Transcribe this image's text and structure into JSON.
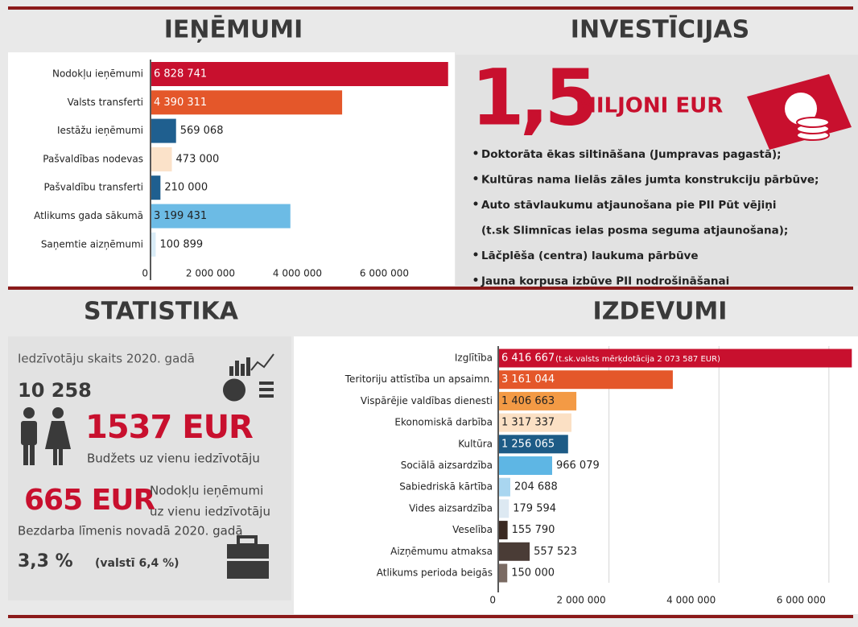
{
  "headings": [
    "IEŅĒMUMI",
    "INVESTĪCIJAS",
    "STATISTIKA",
    "IZDEVUMI"
  ],
  "chart_data": [
    {
      "type": "bar",
      "orientation": "horizontal",
      "categories": [
        "Nodokļu ieņēmumi",
        "Valsts transferti",
        "Iestāžu ieņēmumi",
        "Pašvaldības nodevas",
        "Pašvaldību transferti",
        "Atlikums gada sākumā",
        "Saņemtie aizņēmumi"
      ],
      "values": [
        6828741,
        4390311,
        569068,
        473000,
        210000,
        3199431,
        100899
      ],
      "value_labels": [
        "6 828 741",
        "4 390 311",
        "569 068",
        "473 000",
        "210 000",
        "3 199 431",
        "100 899"
      ],
      "colors": [
        "#c8102e",
        "#e4572a",
        "#1f5f8f",
        "#fbe2c9",
        "#1f5f8f",
        "#6cbbe5",
        "#d9ecf7"
      ],
      "xlim": [
        0,
        7000000
      ],
      "xticks": [
        0,
        {
          "value": 2000000,
          "label": "2 000 000"
        },
        {
          "value": 4000000,
          "label": "4 000 000"
        },
        {
          "value": 6000000,
          "label": "6 000 000"
        }
      ],
      "grid": false
    },
    {
      "type": "bar",
      "orientation": "horizontal",
      "categories": [
        "Izglītība",
        "Teritoriju attīstība un apsaimn.",
        "Vispārējie valdības dienesti",
        "Ekonomiskā darbība",
        "Kultūra",
        "Sociālā aizsardzība",
        "Sabiedriskā kārtība",
        "Vides aizsardzība",
        "Veselība",
        "Aizņēmumu atmaksa",
        "Atlikums perioda beigās"
      ],
      "values": [
        6416667,
        3161044,
        1406663,
        1317337,
        1256065,
        966079,
        204688,
        179594,
        155790,
        557523,
        150000
      ],
      "value_labels": [
        "6 416 667",
        "3 161 044",
        "1 406 663",
        "1 317 337",
        "1 256 065",
        "966 079",
        "204 688",
        "179 594",
        "155 790",
        "557 523",
        "150 000"
      ],
      "colors": [
        "#c8102e",
        "#e4572a",
        "#f39a45",
        "#fbe0c4",
        "#1d5b86",
        "#5eb6e4",
        "#a9d6f0",
        "#dde9f2",
        "#3b2a22",
        "#4a3c36",
        "#7a6a62"
      ],
      "annotation": "(t.sk.valsts mērķdotācija 2 073 587 EUR)",
      "xlim": [
        0,
        6500000
      ],
      "xticks": [
        0,
        {
          "value": 2000000,
          "label": "2 000 000"
        },
        {
          "value": 4000000,
          "label": "4 000 000"
        },
        {
          "value": 6000000,
          "label": "6 000 000"
        }
      ],
      "grid": true
    }
  ],
  "investicijas": {
    "amount": "1,5",
    "unit": "MILJONI EUR",
    "items": [
      [
        "Doktorāta ēkas siltināšana (Jumpravas pagastā);"
      ],
      [
        "Kultūras nama lielās zāles jumta konstrukciju pārbūve;"
      ],
      [
        "Auto stāvlaukumu atjaunošana pie PII Pūt vējiņi",
        "(t.sk Slimnīcas ielas posma seguma atjaunošana);"
      ],
      [
        "Lāčplēša (centra) laukuma pārbūve"
      ],
      [
        "Jauna korpusa izbūve PII nodrošināšanai"
      ]
    ]
  },
  "statistika": {
    "population_label": "Iedzīvotāju skaits 2020. gadā",
    "population": "10 258",
    "budget": "1537 EUR",
    "budget_label": "Budžets uz vienu iedzīvotāju",
    "tax": "665 EUR",
    "tax_label_1": "Nodokļu ieņēmumi",
    "tax_label_2": "uz vienu iedzīvotāju",
    "unemployment_label": "Bezdarba līmenis novadā 2020. gadā",
    "unemployment": "3,3 %",
    "unemployment_country": "(valstī 6,4 %)"
  }
}
